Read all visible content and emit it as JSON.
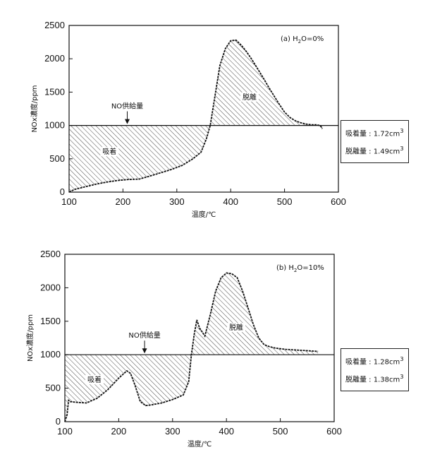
{
  "chart_data": [
    {
      "type": "area",
      "panel_label": "(a) H",
      "panel_label_sub": "2",
      "panel_label_rest": "O=0%",
      "xlabel": "温度/℃",
      "ylabel": "NOx濃度/ppm",
      "xlim": [
        100,
        600
      ],
      "ylim": [
        0,
        2500
      ],
      "xticks": [
        "100",
        "200",
        "300",
        "400",
        "500",
        "600"
      ],
      "yticks": [
        "0",
        "500",
        "1000",
        "1500",
        "2000",
        "2500"
      ],
      "feed_level": 1000,
      "feed_label": "NO供給量",
      "adsorption_label": "吸着",
      "desorption_label": "脱離",
      "series": [
        {
          "x": [
            100,
            110,
            130,
            150,
            170,
            190,
            210,
            230,
            250,
            270,
            290,
            310,
            330,
            345,
            355,
            362,
            370,
            380,
            390,
            400,
            410,
            420,
            430,
            440,
            450,
            460,
            470,
            480,
            490,
            500,
            510,
            520,
            530,
            540,
            550,
            560,
            565,
            568,
            570
          ],
          "y": [
            0,
            40,
            80,
            120,
            150,
            175,
            190,
            195,
            240,
            290,
            340,
            400,
            500,
            600,
            800,
            1000,
            1400,
            1900,
            2150,
            2270,
            2280,
            2200,
            2100,
            1980,
            1850,
            1720,
            1580,
            1450,
            1320,
            1200,
            1120,
            1070,
            1040,
            1020,
            1010,
            1010,
            1000,
            980,
            950
          ]
        }
      ],
      "legend": {
        "adsorbed_label": "吸着量 : 1.72cm",
        "adsorbed_sup": "3",
        "desorbed_label": "脱離量 : 1.49cm",
        "desorbed_sup": "3"
      }
    },
    {
      "type": "area",
      "panel_label": "(b) H",
      "panel_label_sub": "2",
      "panel_label_rest": "O=10%",
      "xlabel": "温度/℃",
      "ylabel": "NOx濃度/ppm",
      "xlim": [
        100,
        600
      ],
      "ylim": [
        0,
        2500
      ],
      "xticks": [
        "100",
        "200",
        "300",
        "400",
        "500",
        "600"
      ],
      "yticks": [
        "0",
        "500",
        "1000",
        "1500",
        "2000",
        "2500"
      ],
      "feed_level": 1000,
      "feed_label": "NO供給量",
      "adsorption_label": "吸着",
      "desorption_label": "脱離",
      "series": [
        {
          "x": [
            100,
            104,
            107,
            110,
            120,
            140,
            160,
            180,
            200,
            215,
            222,
            230,
            240,
            250,
            260,
            280,
            300,
            320,
            330,
            335,
            340,
            345,
            350,
            360,
            370,
            380,
            390,
            400,
            410,
            420,
            430,
            440,
            450,
            460,
            470,
            480,
            490,
            500,
            510,
            520,
            530,
            540,
            550,
            560,
            570
          ],
          "y": [
            0,
            100,
            320,
            300,
            290,
            280,
            350,
            480,
            650,
            760,
            720,
            550,
            300,
            240,
            250,
            280,
            330,
            400,
            600,
            1000,
            1300,
            1520,
            1400,
            1280,
            1600,
            1950,
            2150,
            2220,
            2210,
            2150,
            1950,
            1700,
            1450,
            1250,
            1150,
            1120,
            1100,
            1090,
            1080,
            1075,
            1070,
            1065,
            1060,
            1055,
            1050
          ]
        }
      ],
      "legend": {
        "adsorbed_label": "吸着量 : 1.28cm",
        "adsorbed_sup": "3",
        "desorbed_label": "脱離量 : 1.38cm",
        "desorbed_sup": "3"
      }
    }
  ]
}
